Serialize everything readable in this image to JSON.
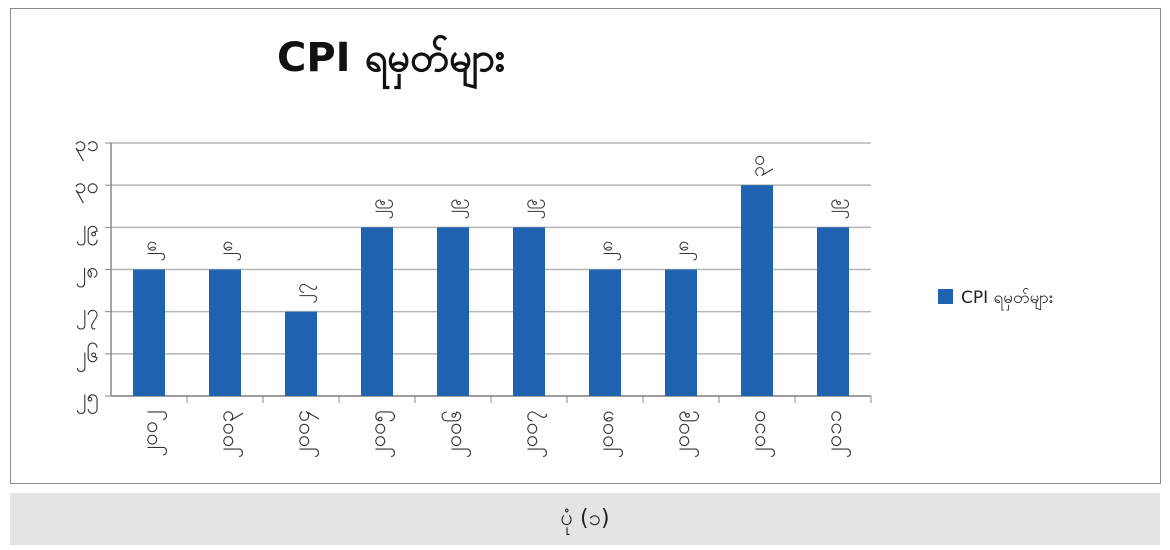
{
  "chart_data": {
    "type": "bar",
    "title": "CPI ရမှတ်များ",
    "categories": [
      "၂၀၀၂",
      "၂၀၀၃",
      "၂၀၀၄",
      "၂၀၀၅",
      "၂၀၀၆",
      "၂၀၀၇",
      "၂၀၀၈",
      "၂၀၀၉",
      "၂၀၁၀",
      "၂၀၁၁"
    ],
    "series": [
      {
        "name": "CPI ရမှတ်များ",
        "values": [
          28,
          28,
          27,
          29,
          29,
          29,
          28,
          28,
          30,
          29
        ],
        "color": "#1f62b0"
      }
    ],
    "data_labels": [
      "၂၈",
      "၂၈",
      "၂၇",
      "၂၉",
      "၂၉",
      "၂၉",
      "၂၈",
      "၂၈",
      "၃၀",
      "၂၉"
    ],
    "y_tick_labels": [
      "၂၅",
      "၂၆",
      "၂၇",
      "၂၈",
      "၂၉",
      "၃၀",
      "၃၁"
    ],
    "y_ticks": [
      25,
      26,
      27,
      28,
      29,
      30,
      31
    ],
    "ylim": [
      25,
      31
    ],
    "grid": true,
    "legend": "right"
  },
  "caption": "ပုံ (၁)"
}
